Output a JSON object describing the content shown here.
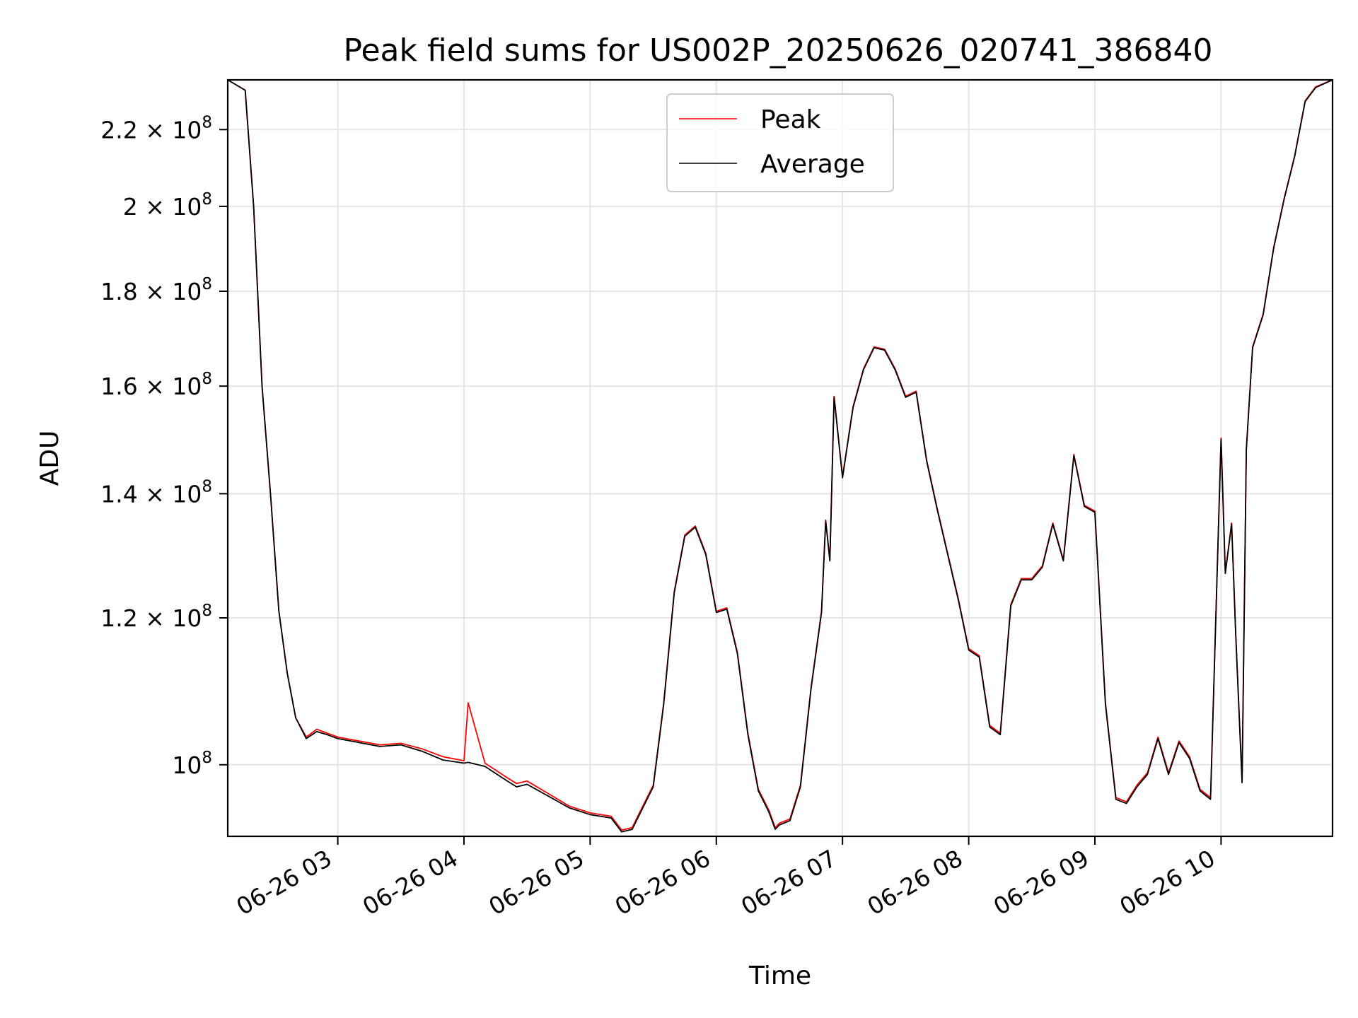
{
  "chart_data": {
    "type": "line",
    "title": "Peak field sums for US002P_20250626_020741_386840",
    "xlabel": "Time",
    "ylabel": "ADU",
    "y_scale": "log",
    "ylim": [
      91500000,
      234000000
    ],
    "xlim": [
      "2025-06-26 02:07:41",
      "2025-06-26 10:53:00"
    ],
    "grid": true,
    "legend_position": "top-center",
    "x_ticks": [
      {
        "t": "2025-06-26 03:00",
        "label": "06-26 03"
      },
      {
        "t": "2025-06-26 04:00",
        "label": "06-26 04"
      },
      {
        "t": "2025-06-26 05:00",
        "label": "06-26 05"
      },
      {
        "t": "2025-06-26 06:00",
        "label": "06-26 06"
      },
      {
        "t": "2025-06-26 07:00",
        "label": "06-26 07"
      },
      {
        "t": "2025-06-26 08:00",
        "label": "06-26 08"
      },
      {
        "t": "2025-06-26 09:00",
        "label": "06-26 09"
      },
      {
        "t": "2025-06-26 10:00",
        "label": "06-26 10"
      }
    ],
    "y_ticks": [
      {
        "v": 100000000,
        "mantissa": "",
        "exp": "8",
        "base": "10"
      },
      {
        "v": 120000000,
        "mantissa": "1.2",
        "exp": "8",
        "base": "10"
      },
      {
        "v": 140000000,
        "mantissa": "1.4",
        "exp": "8",
        "base": "10"
      },
      {
        "v": 160000000,
        "mantissa": "1.6",
        "exp": "8",
        "base": "10"
      },
      {
        "v": 180000000,
        "mantissa": "1.8",
        "exp": "8",
        "base": "10"
      },
      {
        "v": 200000000,
        "mantissa": "2",
        "exp": "8",
        "base": "10"
      },
      {
        "v": 220000000,
        "mantissa": "2.2",
        "exp": "8",
        "base": "10"
      }
    ],
    "x": [
      "2025-06-26 02:07:41",
      "2025-06-26 02:16:00",
      "2025-06-26 02:20:00",
      "2025-06-26 02:24:00",
      "2025-06-26 02:28:00",
      "2025-06-26 02:32:00",
      "2025-06-26 02:36:00",
      "2025-06-26 02:40:00",
      "2025-06-26 02:45:00",
      "2025-06-26 02:50:00",
      "2025-06-26 02:55:00",
      "2025-06-26 03:00:00",
      "2025-06-26 03:10:00",
      "2025-06-26 03:20:00",
      "2025-06-26 03:30:00",
      "2025-06-26 03:40:00",
      "2025-06-26 03:50:00",
      "2025-06-26 04:00:00",
      "2025-06-26 04:02:00",
      "2025-06-26 04:10:00",
      "2025-06-26 04:20:00",
      "2025-06-26 04:25:00",
      "2025-06-26 04:30:00",
      "2025-06-26 04:40:00",
      "2025-06-26 04:50:00",
      "2025-06-26 05:00:00",
      "2025-06-26 05:10:00",
      "2025-06-26 05:15:00",
      "2025-06-26 05:20:00",
      "2025-06-26 05:30:00",
      "2025-06-26 05:35:00",
      "2025-06-26 05:40:00",
      "2025-06-26 05:45:00",
      "2025-06-26 05:50:00",
      "2025-06-26 05:55:00",
      "2025-06-26 06:00:00",
      "2025-06-26 06:05:00",
      "2025-06-26 06:10:00",
      "2025-06-26 06:15:00",
      "2025-06-26 06:20:00",
      "2025-06-26 06:25:00",
      "2025-06-26 06:28:00",
      "2025-06-26 06:30:00",
      "2025-06-26 06:35:00",
      "2025-06-26 06:40:00",
      "2025-06-26 06:45:00",
      "2025-06-26 06:50:00",
      "2025-06-26 06:52:00",
      "2025-06-26 06:54:00",
      "2025-06-26 06:56:00",
      "2025-06-26 07:00:00",
      "2025-06-26 07:05:00",
      "2025-06-26 07:10:00",
      "2025-06-26 07:15:00",
      "2025-06-26 07:20:00",
      "2025-06-26 07:25:00",
      "2025-06-26 07:30:00",
      "2025-06-26 07:35:00",
      "2025-06-26 07:40:00",
      "2025-06-26 07:45:00",
      "2025-06-26 07:50:00",
      "2025-06-26 07:55:00",
      "2025-06-26 08:00:00",
      "2025-06-26 08:05:00",
      "2025-06-26 08:10:00",
      "2025-06-26 08:15:00",
      "2025-06-26 08:20:00",
      "2025-06-26 08:25:00",
      "2025-06-26 08:30:00",
      "2025-06-26 08:35:00",
      "2025-06-26 08:40:00",
      "2025-06-26 08:45:00",
      "2025-06-26 08:50:00",
      "2025-06-26 08:55:00",
      "2025-06-26 09:00:00",
      "2025-06-26 09:05:00",
      "2025-06-26 09:10:00",
      "2025-06-26 09:15:00",
      "2025-06-26 09:20:00",
      "2025-06-26 09:25:00",
      "2025-06-26 09:30:00",
      "2025-06-26 09:35:00",
      "2025-06-26 09:40:00",
      "2025-06-26 09:45:00",
      "2025-06-26 09:50:00",
      "2025-06-26 09:55:00",
      "2025-06-26 10:00:00",
      "2025-06-26 10:02:00",
      "2025-06-26 10:05:00",
      "2025-06-26 10:07:00",
      "2025-06-26 10:10:00",
      "2025-06-26 10:12:00",
      "2025-06-26 10:15:00",
      "2025-06-26 10:20:00",
      "2025-06-26 10:25:00",
      "2025-06-26 10:30:00",
      "2025-06-26 10:35:00",
      "2025-06-26 10:40:00",
      "2025-06-26 10:45:00",
      "2025-06-26 10:53:00"
    ],
    "series": [
      {
        "name": "Peak",
        "color": "#ff0000",
        "values": [
          234000000,
          231000000,
          200000000,
          160000000,
          140000000,
          121000000,
          112000000,
          106000000,
          103500000,
          104500000,
          104000000,
          103500000,
          103000000,
          102500000,
          102700000,
          102000000,
          101000000,
          100500000,
          108000000,
          100200000,
          98500000,
          97700000,
          98000000,
          96500000,
          95000000,
          94200000,
          93800000,
          92200000,
          92500000,
          97500000,
          108000000,
          124000000,
          133000000,
          134500000,
          130000000,
          121000000,
          121500000,
          115000000,
          104000000,
          97000000,
          94500000,
          92500000,
          93000000,
          93500000,
          97500000,
          110000000,
          121000000,
          135500000,
          129000000,
          158000000,
          143000000,
          156000000,
          163500000,
          168000000,
          167500000,
          163500000,
          158000000,
          159000000,
          146000000,
          137500000,
          130000000,
          123000000,
          115500000,
          114500000,
          105000000,
          104000000,
          122000000,
          126000000,
          126000000,
          128000000,
          135000000,
          129000000,
          147000000,
          138000000,
          137000000,
          108000000,
          96000000,
          95500000,
          97500000,
          99000000,
          103500000,
          99000000,
          103000000,
          101000000,
          97000000,
          96000000,
          150000000,
          127000000,
          135000000,
          117500000,
          98000000,
          148000000,
          168000000,
          175000000,
          190000000,
          202000000,
          213000000,
          228000000,
          232000000,
          234000000
        ]
      },
      {
        "name": "Average",
        "color": "#000000",
        "values": [
          234000000,
          231000000,
          200000000,
          160000000,
          140000000,
          121000000,
          112000000,
          106000000,
          103300000,
          104200000,
          103800000,
          103300000,
          102800000,
          102300000,
          102500000,
          101700000,
          100600000,
          100200000,
          100300000,
          99800000,
          98100000,
          97300000,
          97600000,
          96200000,
          94800000,
          94000000,
          93600000,
          92000000,
          92300000,
          97300000,
          107800000,
          123800000,
          132800000,
          134300000,
          129800000,
          120800000,
          121300000,
          114800000,
          103800000,
          96800000,
          94300000,
          92300000,
          92800000,
          93300000,
          97300000,
          109800000,
          120800000,
          135300000,
          128800000,
          157800000,
          142800000,
          155800000,
          163300000,
          167800000,
          167300000,
          163300000,
          157800000,
          158800000,
          145800000,
          137300000,
          129800000,
          122800000,
          115300000,
          114300000,
          104800000,
          103800000,
          121800000,
          125800000,
          125800000,
          127800000,
          134800000,
          128800000,
          146800000,
          137800000,
          136800000,
          107800000,
          95800000,
          95300000,
          97300000,
          98800000,
          103300000,
          98800000,
          102800000,
          100800000,
          96800000,
          95800000,
          149800000,
          126800000,
          134800000,
          117300000,
          97800000,
          147800000,
          167800000,
          174800000,
          189800000,
          201800000,
          212800000,
          227800000,
          231800000,
          234000000
        ]
      }
    ]
  }
}
